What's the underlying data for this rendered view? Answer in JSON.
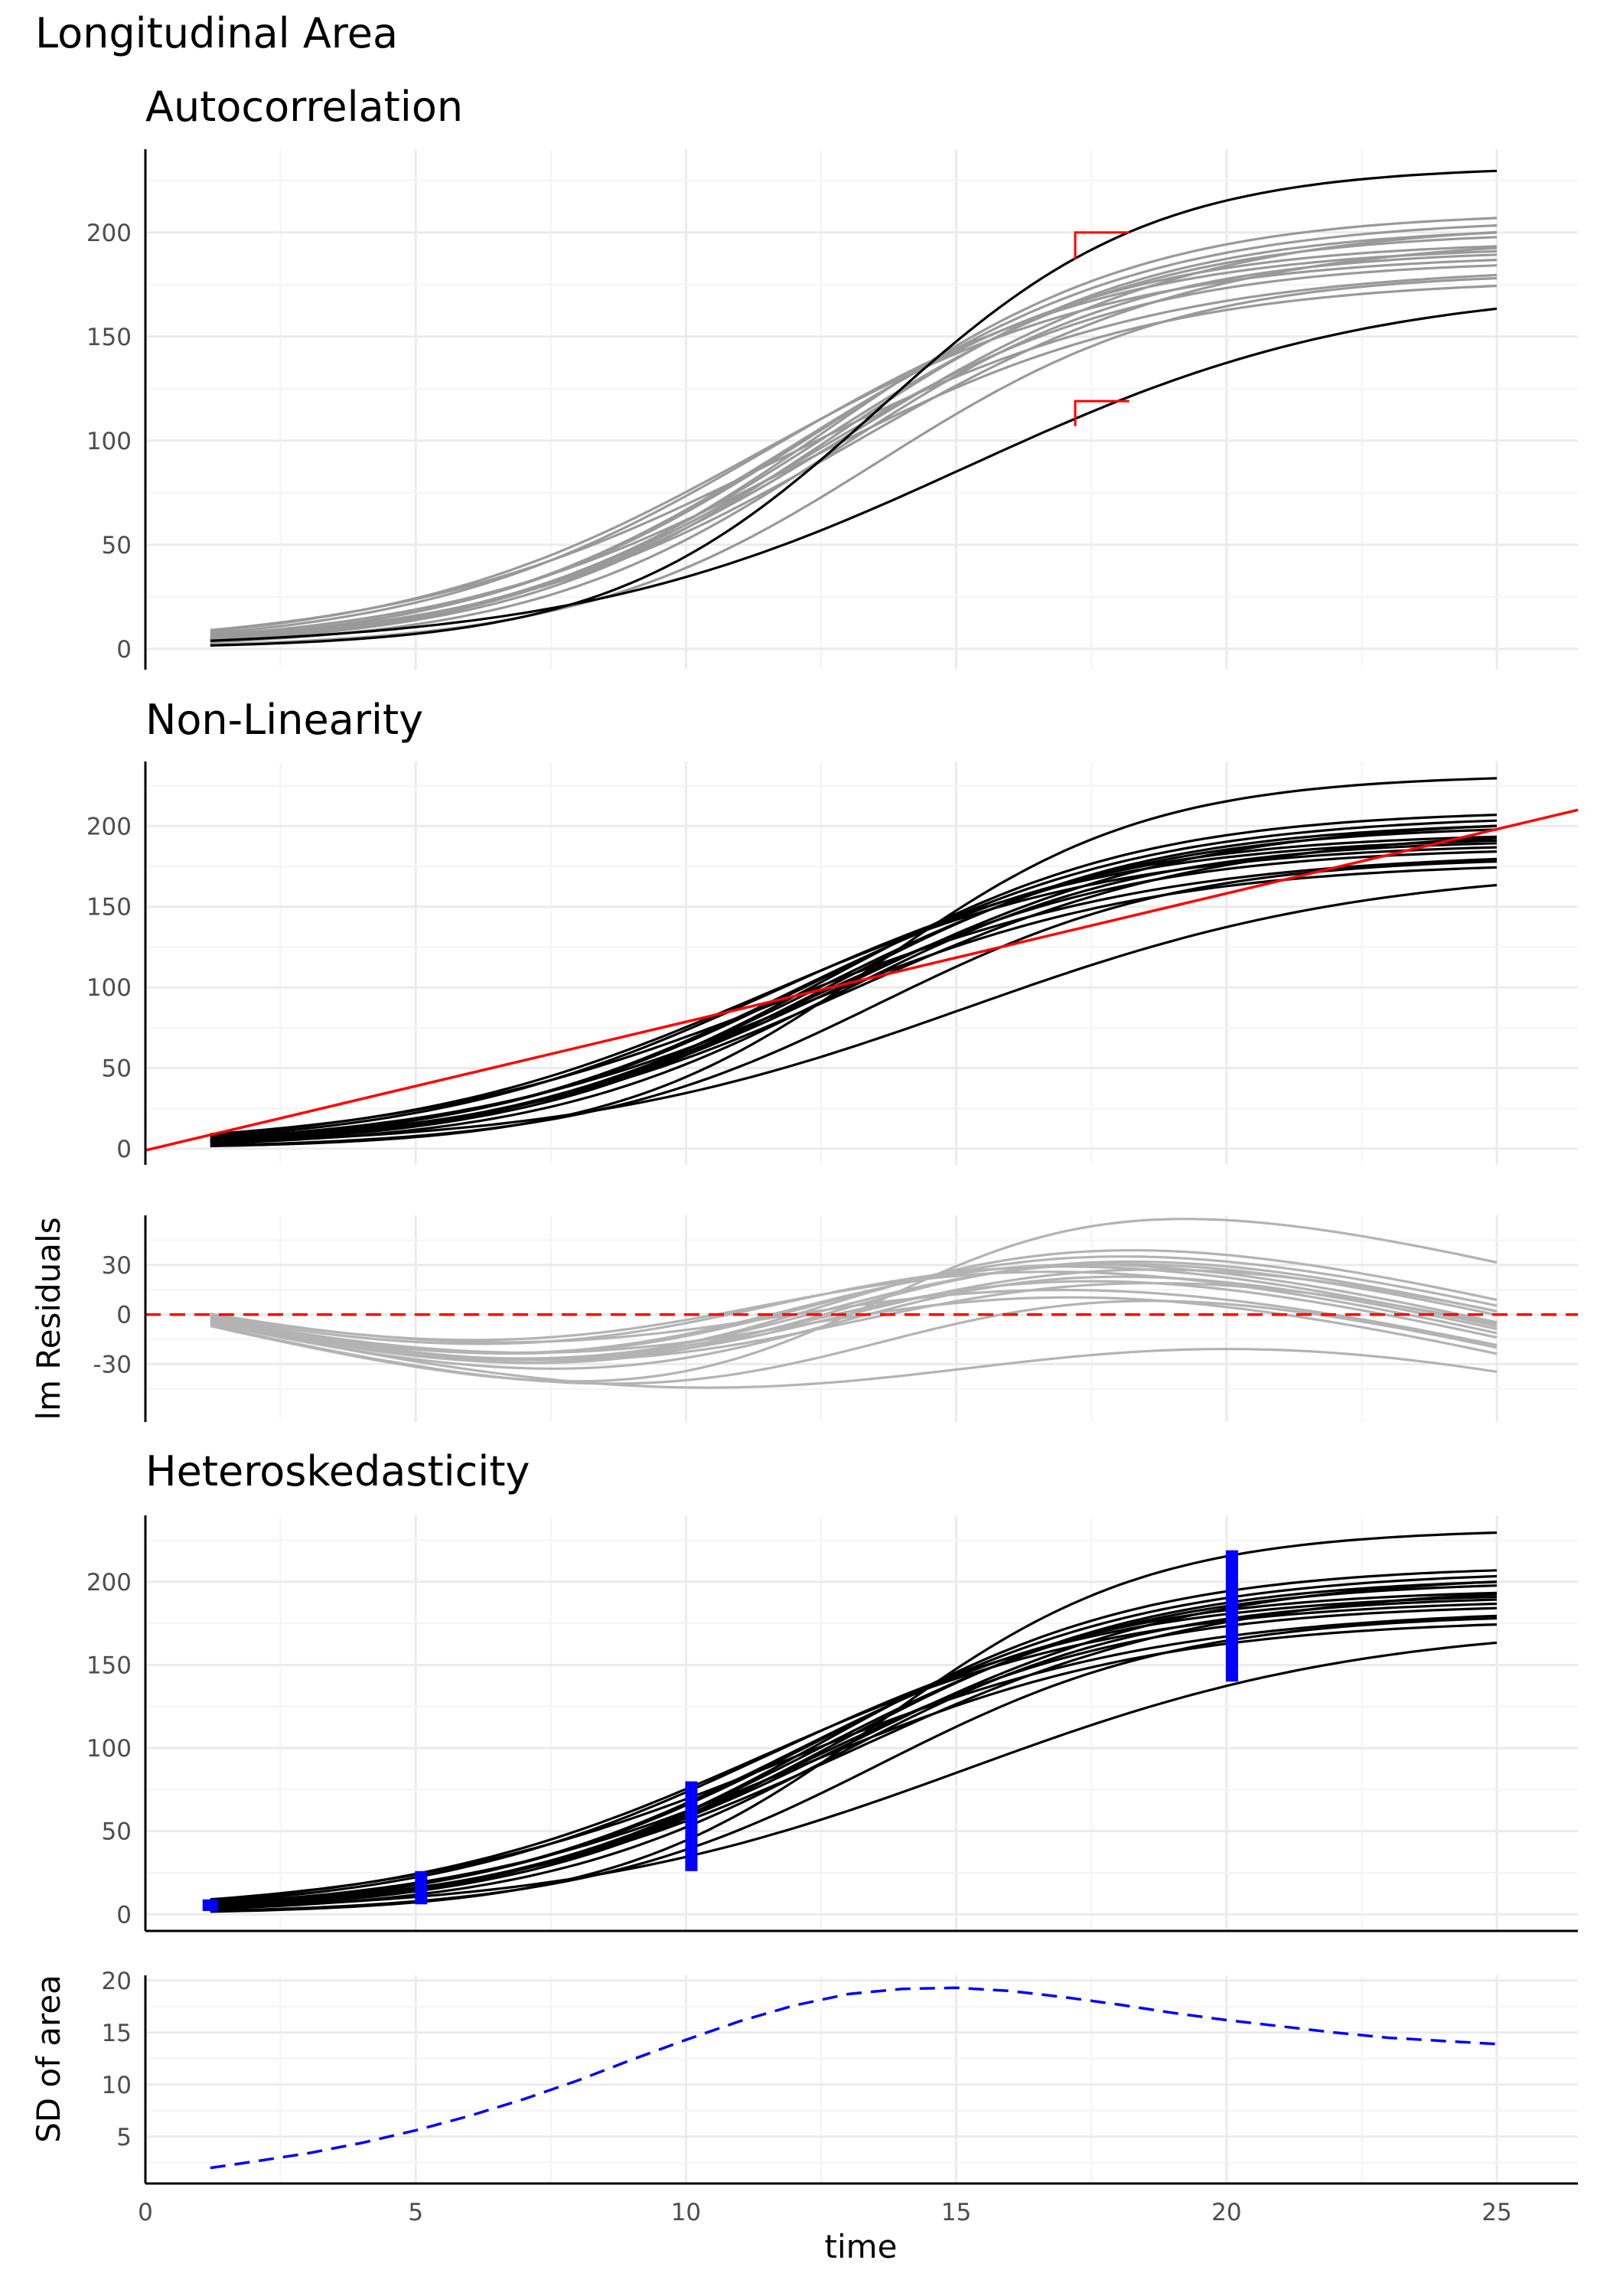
{
  "title": "Longitudinal Area",
  "colors": {
    "black": "#000000",
    "gray": "#999999",
    "light_gray": "#b3b3b3",
    "red": "#ff0000",
    "blue": "#0000ff",
    "grid_major": "#ebebeb",
    "grid_minor": "#f4f4f4"
  },
  "chart_data": [
    {
      "type": "line",
      "title": "Autocorrelation",
      "xlim": [
        0,
        26.5
      ],
      "ylim": [
        -10,
        240
      ],
      "yticks": [
        0,
        50,
        100,
        150,
        200
      ],
      "ylabel": "",
      "grid": true,
      "series": [
        {
          "style": "gray",
          "A": 210,
          "k": 0.34,
          "t0": 12.6
        },
        {
          "style": "gray",
          "A": 207,
          "k": 0.32,
          "t0": 12.4
        },
        {
          "style": "gray",
          "A": 205,
          "k": 0.31,
          "t0": 13.0
        },
        {
          "style": "gray",
          "A": 203,
          "k": 0.34,
          "t0": 12.7
        },
        {
          "style": "gray",
          "A": 201,
          "k": 0.33,
          "t0": 12.5
        },
        {
          "style": "gray",
          "A": 198,
          "k": 0.3,
          "t0": 13.1
        },
        {
          "style": "gray",
          "A": 196,
          "k": 0.33,
          "t0": 12.0
        },
        {
          "style": "gray",
          "A": 194,
          "k": 0.31,
          "t0": 11.6
        },
        {
          "style": "gray",
          "A": 192,
          "k": 0.35,
          "t0": 12.8
        },
        {
          "style": "gray",
          "A": 190,
          "k": 0.3,
          "t0": 11.4
        },
        {
          "style": "gray",
          "A": 187,
          "k": 0.33,
          "t0": 12.3
        },
        {
          "style": "gray",
          "A": 184,
          "k": 0.28,
          "t0": 11.8
        },
        {
          "style": "gray",
          "A": 181,
          "k": 0.36,
          "t0": 13.6
        },
        {
          "style": "gray",
          "A": 178,
          "k": 0.3,
          "t0": 12.1
        },
        {
          "style": "black",
          "A": 232,
          "k": 0.4,
          "t0": 13.6
        },
        {
          "style": "black",
          "A": 175,
          "k": 0.27,
          "t0": 15.2
        }
      ],
      "annotations": [
        {
          "type": "bracket",
          "x": 17.2,
          "x2": 18.2,
          "y": 200,
          "y2": 187
        },
        {
          "type": "bracket",
          "x": 17.2,
          "x2": 18.2,
          "y": 119,
          "y2": 107
        }
      ]
    },
    {
      "type": "line",
      "title": "Non-Linearity",
      "xlim": [
        0,
        26.5
      ],
      "ylim": [
        -10,
        240
      ],
      "yticks": [
        0,
        50,
        100,
        150,
        200
      ],
      "ylabel": "",
      "grid": true,
      "series_style": "black",
      "overlay_line": {
        "x": [
          0,
          26.5
        ],
        "y": [
          -1,
          210
        ]
      }
    },
    {
      "type": "line",
      "title": "",
      "xlim": [
        0,
        26.5
      ],
      "ylim": [
        -65,
        60
      ],
      "yticks": [
        -30,
        0,
        30
      ],
      "ylabel": "lm Residuals",
      "grid": true,
      "series_style": "light_gray",
      "reference_line": {
        "y": 0,
        "style": "dashed"
      }
    },
    {
      "type": "line",
      "title": "Heteroskedasticity",
      "xlim": [
        0,
        26.5
      ],
      "ylim": [
        -10,
        240
      ],
      "yticks": [
        0,
        50,
        100,
        150,
        200
      ],
      "ylabel": "",
      "grid": true,
      "series_style": "black",
      "intervals": [
        {
          "x": 1.2,
          "low": 2,
          "high": 9
        },
        {
          "x": 5.1,
          "low": 6,
          "high": 26
        },
        {
          "x": 10.1,
          "low": 26,
          "high": 80
        },
        {
          "x": 20.1,
          "low": 140,
          "high": 219
        }
      ]
    },
    {
      "type": "line",
      "title": "",
      "xlim": [
        0,
        26.5
      ],
      "ylim": [
        0.5,
        20.5
      ],
      "yticks": [
        5,
        10,
        15,
        20
      ],
      "xticks": [
        0,
        5,
        10,
        15,
        20,
        25
      ],
      "ylabel": "SD of area",
      "xlabel": "time",
      "grid": true,
      "series": [
        {
          "style": "dashed-blue",
          "x": [
            1.2,
            2,
            3,
            4,
            5,
            6,
            7,
            8,
            9,
            10,
            11,
            12,
            13,
            14,
            15,
            16,
            17,
            18,
            19,
            20,
            21,
            22,
            23,
            24,
            25
          ],
          "y": [
            2.0,
            2.6,
            3.4,
            4.4,
            5.6,
            7.0,
            8.6,
            10.4,
            12.4,
            14.3,
            16.1,
            17.6,
            18.7,
            19.2,
            19.3,
            19.0,
            18.4,
            17.7,
            16.9,
            16.2,
            15.6,
            15.0,
            14.5,
            14.2,
            13.9
          ]
        }
      ]
    }
  ]
}
